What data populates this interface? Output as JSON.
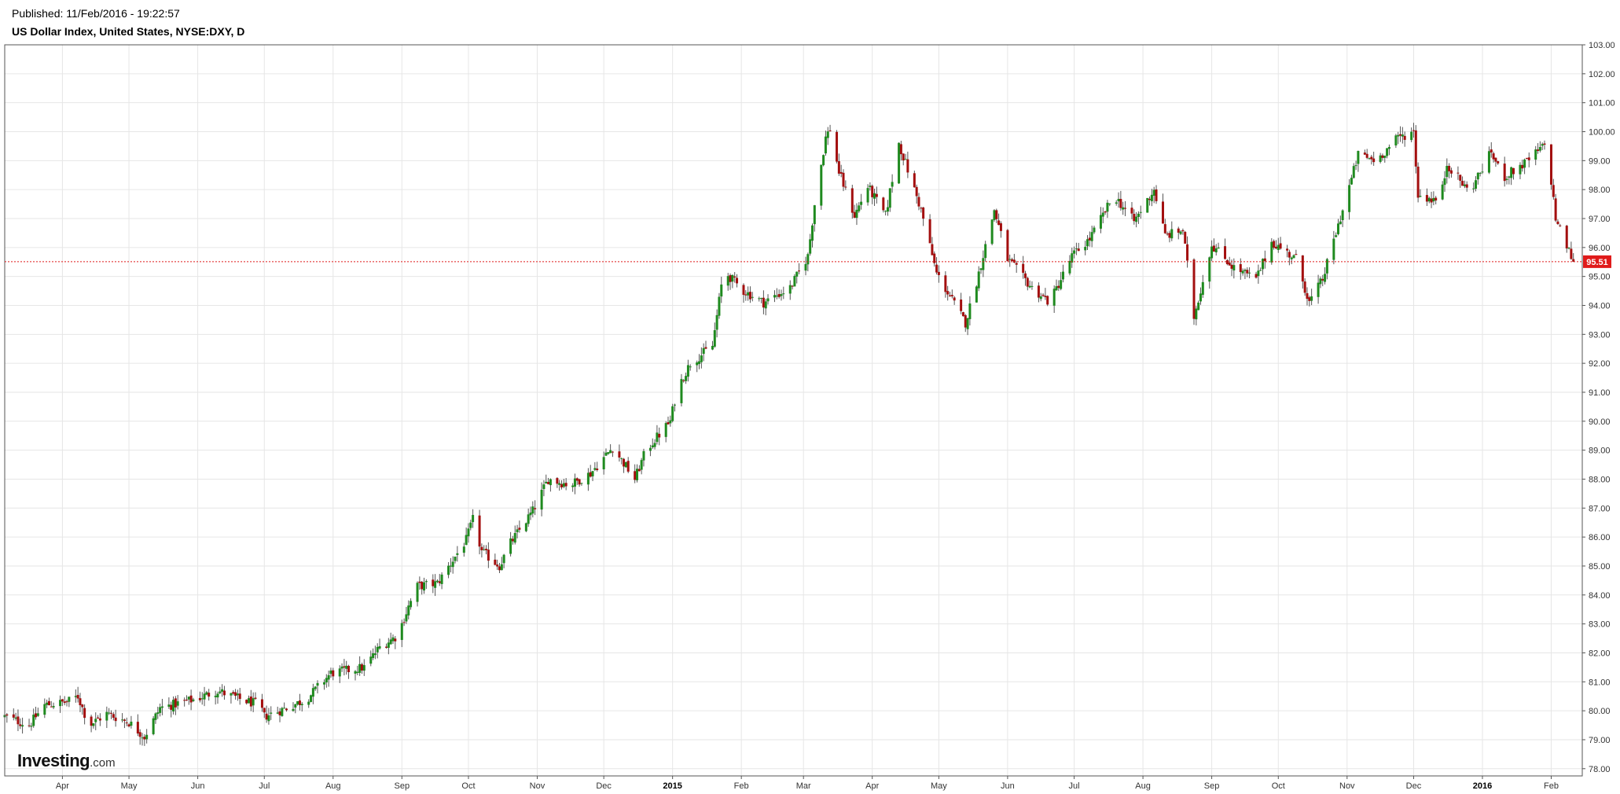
{
  "header": {
    "published": "Published: 11/Feb/2016 - 19:22:57",
    "title": "US Dollar Index, United States, NYSE:DXY, D"
  },
  "logo": {
    "name": "Investing",
    "suffix": ".com"
  },
  "colors": {
    "up": "#1f8a1f",
    "down": "#a30f0f",
    "wick": "#555555",
    "last_price_line": "#e01b1b",
    "last_price_badge": "#e01b1b",
    "grid": "#e6e6e6"
  },
  "chart_data": {
    "type": "candlestick",
    "title": "US Dollar Index, United States, NYSE:DXY, D",
    "xlabel": "",
    "ylabel": "",
    "ylim": [
      77.75,
      103.0
    ],
    "y_ticks": [
      "78.00",
      "79.00",
      "80.00",
      "81.00",
      "82.00",
      "83.00",
      "84.00",
      "85.00",
      "86.00",
      "87.00",
      "88.00",
      "89.00",
      "90.00",
      "91.00",
      "92.00",
      "93.00",
      "94.00",
      "95.00",
      "96.00",
      "97.00",
      "98.00",
      "99.00",
      "100.00",
      "101.00",
      "102.00",
      "103.00"
    ],
    "x_range": [
      "2014-03-06",
      "2016-02-15"
    ],
    "x_ticks": [
      {
        "label": "Apr",
        "date": "2014-04-01",
        "bold": false
      },
      {
        "label": "May",
        "date": "2014-05-01",
        "bold": false
      },
      {
        "label": "Jun",
        "date": "2014-06-01",
        "bold": false
      },
      {
        "label": "Jul",
        "date": "2014-07-01",
        "bold": false
      },
      {
        "label": "Aug",
        "date": "2014-08-01",
        "bold": false
      },
      {
        "label": "Sep",
        "date": "2014-09-01",
        "bold": false
      },
      {
        "label": "Oct",
        "date": "2014-10-01",
        "bold": false
      },
      {
        "label": "Nov",
        "date": "2014-11-01",
        "bold": false
      },
      {
        "label": "Dec",
        "date": "2014-12-01",
        "bold": false
      },
      {
        "label": "2015",
        "date": "2015-01-01",
        "bold": true
      },
      {
        "label": "Feb",
        "date": "2015-02-01",
        "bold": false
      },
      {
        "label": "Mar",
        "date": "2015-03-01",
        "bold": false
      },
      {
        "label": "Apr",
        "date": "2015-04-01",
        "bold": false
      },
      {
        "label": "May",
        "date": "2015-05-01",
        "bold": false
      },
      {
        "label": "Jun",
        "date": "2015-06-01",
        "bold": false
      },
      {
        "label": "Jul",
        "date": "2015-07-01",
        "bold": false
      },
      {
        "label": "Aug",
        "date": "2015-08-01",
        "bold": false
      },
      {
        "label": "Sep",
        "date": "2015-09-01",
        "bold": false
      },
      {
        "label": "Oct",
        "date": "2015-10-01",
        "bold": false
      },
      {
        "label": "Nov",
        "date": "2015-11-01",
        "bold": false
      },
      {
        "label": "Dec",
        "date": "2015-12-01",
        "bold": false
      },
      {
        "label": "2016",
        "date": "2016-01-01",
        "bold": true
      },
      {
        "label": "Feb",
        "date": "2016-02-01",
        "bold": false
      }
    ],
    "last_price": 95.51,
    "last_price_label": "95.51",
    "grid": true,
    "price_path": [
      {
        "date": "2014-03-06",
        "close": 79.8
      },
      {
        "date": "2014-03-17",
        "close": 79.5
      },
      {
        "date": "2014-03-24",
        "close": 80.2
      },
      {
        "date": "2014-04-03",
        "close": 80.3
      },
      {
        "date": "2014-04-08",
        "close": 80.5
      },
      {
        "date": "2014-04-13",
        "close": 79.5
      },
      {
        "date": "2014-04-21",
        "close": 79.9
      },
      {
        "date": "2014-05-01",
        "close": 79.6
      },
      {
        "date": "2014-05-08",
        "close": 79.1
      },
      {
        "date": "2014-05-15",
        "close": 80.1
      },
      {
        "date": "2014-05-31",
        "close": 80.4
      },
      {
        "date": "2014-06-10",
        "close": 80.7
      },
      {
        "date": "2014-06-13",
        "close": 80.6
      },
      {
        "date": "2014-06-20",
        "close": 80.4
      },
      {
        "date": "2014-06-29",
        "close": 80.2
      },
      {
        "date": "2014-07-01",
        "close": 79.8
      },
      {
        "date": "2014-07-11",
        "close": 80.1
      },
      {
        "date": "2014-07-20",
        "close": 80.4
      },
      {
        "date": "2014-07-31",
        "close": 81.3
      },
      {
        "date": "2014-08-15",
        "close": 81.5
      },
      {
        "date": "2014-08-22",
        "close": 82.2
      },
      {
        "date": "2014-08-30",
        "close": 82.6
      },
      {
        "date": "2014-09-04",
        "close": 83.6
      },
      {
        "date": "2014-09-08",
        "close": 84.3
      },
      {
        "date": "2014-09-17",
        "close": 84.4
      },
      {
        "date": "2014-09-30",
        "close": 85.9
      },
      {
        "date": "2014-10-03",
        "close": 86.6
      },
      {
        "date": "2014-10-07",
        "close": 85.5
      },
      {
        "date": "2014-10-15",
        "close": 85.0
      },
      {
        "date": "2014-10-20",
        "close": 85.8
      },
      {
        "date": "2014-10-30",
        "close": 86.9
      },
      {
        "date": "2014-11-06",
        "close": 88.0
      },
      {
        "date": "2014-11-16",
        "close": 87.8
      },
      {
        "date": "2014-11-25",
        "close": 88.2
      },
      {
        "date": "2014-12-05",
        "close": 89.1
      },
      {
        "date": "2014-12-15",
        "close": 88.0
      },
      {
        "date": "2014-12-20",
        "close": 89.0
      },
      {
        "date": "2014-12-31",
        "close": 90.0
      },
      {
        "date": "2015-01-03",
        "close": 91.1
      },
      {
        "date": "2015-01-09",
        "close": 92.0
      },
      {
        "date": "2015-01-19",
        "close": 92.6
      },
      {
        "date": "2015-01-24",
        "close": 95.2
      },
      {
        "date": "2015-02-02",
        "close": 94.5
      },
      {
        "date": "2015-02-11",
        "close": 94.1
      },
      {
        "date": "2015-02-23",
        "close": 94.6
      },
      {
        "date": "2015-03-03",
        "close": 95.7
      },
      {
        "date": "2015-03-06",
        "close": 97.5
      },
      {
        "date": "2015-03-11",
        "close": 99.8
      },
      {
        "date": "2015-03-13",
        "close": 100.1
      },
      {
        "date": "2015-03-17",
        "close": 98.6
      },
      {
        "date": "2015-03-24",
        "close": 97.1
      },
      {
        "date": "2015-03-30",
        "close": 98.1
      },
      {
        "date": "2015-04-07",
        "close": 97.1
      },
      {
        "date": "2015-04-13",
        "close": 99.6
      },
      {
        "date": "2015-04-23",
        "close": 97.3
      },
      {
        "date": "2015-04-30",
        "close": 95.1
      },
      {
        "date": "2015-05-13",
        "close": 93.4
      },
      {
        "date": "2015-05-17",
        "close": 94.5
      },
      {
        "date": "2015-05-26",
        "close": 97.3
      },
      {
        "date": "2015-06-01",
        "close": 95.6
      },
      {
        "date": "2015-06-12",
        "close": 94.6
      },
      {
        "date": "2015-06-20",
        "close": 94.1
      },
      {
        "date": "2015-06-30",
        "close": 95.7
      },
      {
        "date": "2015-07-08",
        "close": 96.3
      },
      {
        "date": "2015-07-19",
        "close": 97.8
      },
      {
        "date": "2015-07-28",
        "close": 96.9
      },
      {
        "date": "2015-08-06",
        "close": 98.0
      },
      {
        "date": "2015-08-11",
        "close": 96.4
      },
      {
        "date": "2015-08-19",
        "close": 96.6
      },
      {
        "date": "2015-08-24",
        "close": 93.6
      },
      {
        "date": "2015-09-01",
        "close": 96.1
      },
      {
        "date": "2015-09-11",
        "close": 95.3
      },
      {
        "date": "2015-09-21",
        "close": 94.9
      },
      {
        "date": "2015-09-28",
        "close": 96.2
      },
      {
        "date": "2015-10-09",
        "close": 95.6
      },
      {
        "date": "2015-10-15",
        "close": 94.1
      },
      {
        "date": "2015-10-21",
        "close": 94.9
      },
      {
        "date": "2015-10-30",
        "close": 97.3
      },
      {
        "date": "2015-11-06",
        "close": 99.2
      },
      {
        "date": "2015-11-14",
        "close": 99.0
      },
      {
        "date": "2015-11-24",
        "close": 99.8
      },
      {
        "date": "2015-12-01",
        "close": 100.0
      },
      {
        "date": "2015-12-03",
        "close": 97.8
      },
      {
        "date": "2015-12-13",
        "close": 97.6
      },
      {
        "date": "2015-12-16",
        "close": 98.9
      },
      {
        "date": "2015-12-26",
        "close": 97.9
      },
      {
        "date": "2016-01-05",
        "close": 99.3
      },
      {
        "date": "2016-01-10",
        "close": 98.4
      },
      {
        "date": "2016-01-20",
        "close": 98.9
      },
      {
        "date": "2016-01-30",
        "close": 99.6
      },
      {
        "date": "2016-02-03",
        "close": 97.0
      },
      {
        "date": "2016-02-05",
        "close": 96.6
      },
      {
        "date": "2016-02-11",
        "close": 95.51
      }
    ]
  }
}
